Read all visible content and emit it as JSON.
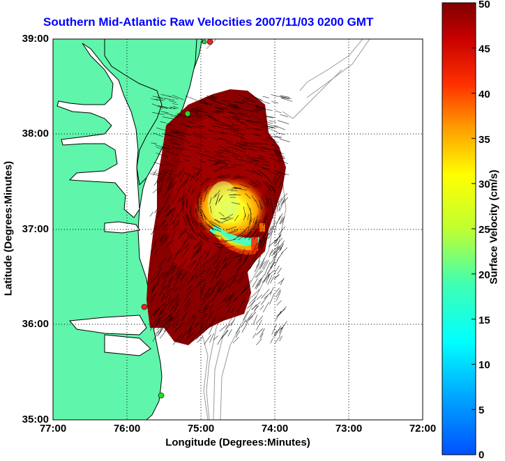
{
  "title": "Southern Mid-Atlantic Raw Velocities 2007/11/03 0200 GMT",
  "axes": {
    "xlabel": "Longitude (Degrees:Minutes)",
    "ylabel": "Latitude (Degrees:Minutes)",
    "xticks": [
      "77:00",
      "76:00",
      "75:00",
      "74:00",
      "73:00",
      "72:00"
    ],
    "yticks": [
      "39:00",
      "38:00",
      "37:00",
      "36:00",
      "35:00"
    ],
    "xlim_deg_west": [
      77,
      72
    ],
    "ylim_deg_north": [
      35,
      39
    ],
    "grid": "dotted"
  },
  "colorbar": {
    "label": "Surface Velocity (cm/s)",
    "ticks": [
      "50",
      "45",
      "40",
      "35",
      "30",
      "25",
      "20",
      "15",
      "10",
      "5",
      "0"
    ],
    "range": [
      0,
      50
    ],
    "colormap": "jet"
  },
  "colors": {
    "land": "#5ff5aa",
    "coast_line": "#000000",
    "bathymetry": "#999999",
    "vectors": "#000000",
    "station_green": "#22dd22",
    "station_red": "#ee2222",
    "title": "#0000ff"
  }
}
